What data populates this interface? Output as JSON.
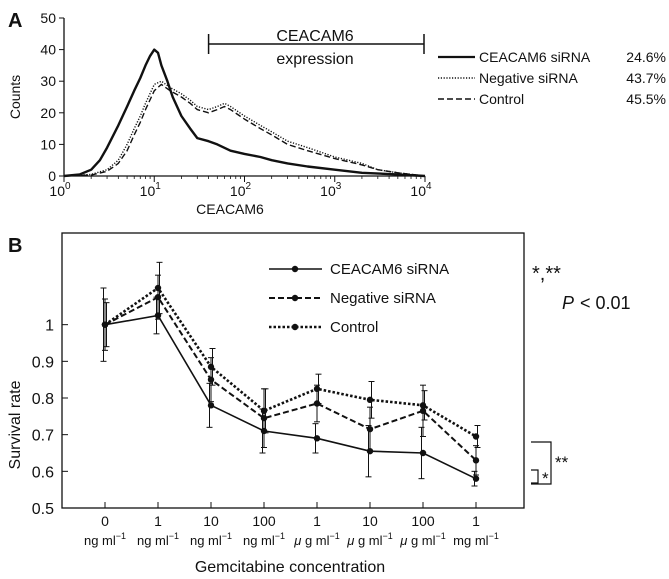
{
  "chart_data": [
    {
      "type": "line",
      "panel": "A",
      "xlabel": "CEACAM6",
      "ylabel": "Counts",
      "xscale": "log",
      "xlim": [
        1,
        10000
      ],
      "ylim": [
        0,
        50
      ],
      "xticks": [
        {
          "value": 1,
          "base": "10",
          "exp": "0"
        },
        {
          "value": 10,
          "base": "10",
          "exp": "1"
        },
        {
          "value": 100,
          "base": "10",
          "exp": "2"
        },
        {
          "value": 1000,
          "base": "10",
          "exp": "3"
        },
        {
          "value": 10000,
          "base": "10",
          "exp": "4"
        }
      ],
      "yticks": [
        0,
        10,
        20,
        30,
        40,
        50
      ],
      "gate": {
        "label_line1": "CEACAM6",
        "label_line2": "expression",
        "from": 40,
        "to": 10000
      },
      "legend": [
        {
          "name": "CEACAM6 siRNA",
          "value": "24.6%",
          "style": "solid"
        },
        {
          "name": "Negative siRNA",
          "value": "43.7%",
          "style": "dotted"
        },
        {
          "name": "Control",
          "value": "45.5%",
          "style": "dashed"
        }
      ],
      "series": [
        {
          "key": "ceacam6",
          "style": "solid",
          "x": [
            1,
            1.5,
            2,
            2.5,
            3,
            4,
            5,
            6,
            7,
            8,
            9,
            10,
            11,
            12,
            14,
            16,
            20,
            25,
            30,
            40,
            50,
            70,
            100,
            150,
            200,
            300,
            500,
            1000,
            2000,
            5000,
            10000
          ],
          "y": [
            0,
            0.5,
            2,
            5,
            9,
            16,
            22,
            27,
            31,
            35,
            38,
            40,
            39,
            35,
            30,
            25,
            19,
            15,
            12,
            11,
            10,
            8,
            7,
            6,
            5,
            4,
            3,
            2,
            1,
            0.5,
            0
          ]
        },
        {
          "key": "negative",
          "style": "dotted",
          "x": [
            1,
            2,
            3,
            4,
            5,
            6,
            7,
            8,
            10,
            12,
            15,
            20,
            25,
            30,
            40,
            50,
            60,
            70,
            100,
            150,
            200,
            300,
            500,
            1000,
            2000,
            3000,
            5000,
            10000
          ],
          "y": [
            0,
            0.5,
            2,
            5,
            10,
            15,
            19,
            23,
            29,
            30,
            28,
            26,
            24,
            22,
            21,
            22,
            23,
            22,
            19,
            16,
            14,
            11,
            9,
            6,
            4,
            2,
            1,
            0
          ]
        },
        {
          "key": "control",
          "style": "dashed",
          "x": [
            1,
            2,
            3,
            4,
            5,
            6,
            7,
            8,
            10,
            12,
            15,
            20,
            25,
            30,
            40,
            50,
            60,
            70,
            100,
            150,
            200,
            300,
            500,
            1000,
            2000,
            3000,
            5000,
            10000
          ],
          "y": [
            0,
            0.3,
            1.5,
            4,
            8,
            13,
            17,
            21,
            27,
            29,
            27,
            25,
            23,
            21,
            20,
            21,
            22,
            21,
            18,
            15,
            13,
            10,
            8,
            5.5,
            3.5,
            2,
            1,
            0
          ]
        }
      ]
    },
    {
      "type": "line",
      "panel": "B",
      "xlabel": "Gemcitabine concentration",
      "ylabel": "Survival rate",
      "ylim": [
        0.5,
        1.25
      ],
      "yticks": [
        "0.5",
        "0.6",
        "0.7",
        "0.8",
        "0.9",
        "1"
      ],
      "categories": [
        {
          "num": "0",
          "unit": "ng ml",
          "micro": false
        },
        {
          "num": "1",
          "unit": "ng ml",
          "micro": false
        },
        {
          "num": "10",
          "unit": "ng ml",
          "micro": false
        },
        {
          "num": "100",
          "unit": "ng ml",
          "micro": false
        },
        {
          "num": "1",
          "unit": "g ml",
          "micro": true
        },
        {
          "num": "10",
          "unit": "g ml",
          "micro": true
        },
        {
          "num": "100",
          "unit": "g ml",
          "micro": true
        },
        {
          "num": "1",
          "unit": "mg ml",
          "micro": false
        }
      ],
      "unit_exp": "−1",
      "micro_symbol": "μ",
      "series": [
        {
          "name": "CEACAM6 siRNA",
          "style": "solid",
          "color": "#111111",
          "values": [
            1.0,
            1.025,
            0.78,
            0.71,
            0.69,
            0.655,
            0.65,
            0.58
          ],
          "errors": [
            0.1,
            0.05,
            0.06,
            0.06,
            0.04,
            0.07,
            0.07,
            0.02
          ]
        },
        {
          "name": "Negative siRNA",
          "style": "dashed",
          "color": "#111111",
          "values": [
            1.0,
            1.075,
            0.85,
            0.745,
            0.785,
            0.715,
            0.765,
            0.63
          ],
          "errors": [
            0.07,
            0.06,
            0.06,
            0.08,
            0.05,
            0.06,
            0.07,
            0.04
          ]
        },
        {
          "name": "Control",
          "style": "dotted",
          "color": "#111111",
          "values": [
            1.0,
            1.1,
            0.885,
            0.765,
            0.825,
            0.795,
            0.78,
            0.695
          ],
          "errors": [
            0.06,
            0.07,
            0.05,
            0.06,
            0.04,
            0.05,
            0.04,
            0.03
          ]
        }
      ],
      "significance": {
        "line1": "*,**",
        "p_symbol": "P",
        "p_text": "< 0.01",
        "bracket_small": "*",
        "bracket_large": "**"
      }
    }
  ],
  "panel_labels": {
    "a": "A",
    "b": "B"
  }
}
